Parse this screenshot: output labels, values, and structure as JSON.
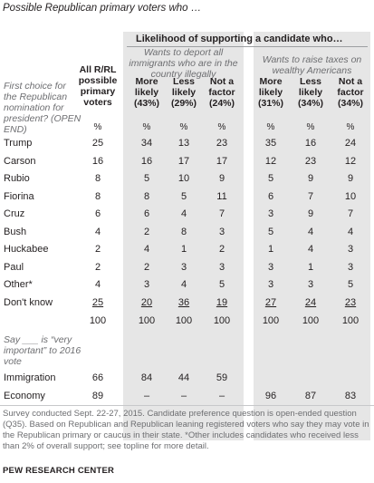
{
  "title": "Possible Republican primary voters who …",
  "group_title": "Likelihood of supporting a candidate who…",
  "subgroups": [
    {
      "label": "Wants to deport all immigrants who are in the country illegally"
    },
    {
      "label": "Wants to raise taxes on wealthy Americans"
    }
  ],
  "left_note": "First choice for the Republican nomination for president? (OPEN END)",
  "columns": [
    "All R/RL possible primary voters",
    "More likely (43%)",
    "Less likely (29%)",
    "Not a factor (24%)",
    "More likely (31%)",
    "Less likely (34%)",
    "Not a factor (34%)"
  ],
  "pct_signs": [
    "%",
    "%",
    "%",
    "%",
    "%",
    "%",
    "%"
  ],
  "rows": [
    {
      "label": "Trump",
      "values": [
        "25",
        "34",
        "13",
        "23",
        "35",
        "16",
        "24"
      ]
    },
    {
      "label": "Carson",
      "values": [
        "16",
        "16",
        "17",
        "17",
        "12",
        "23",
        "12"
      ]
    },
    {
      "label": "Rubio",
      "values": [
        "8",
        "5",
        "10",
        "9",
        "5",
        "9",
        "9"
      ]
    },
    {
      "label": "Fiorina",
      "values": [
        "8",
        "8",
        "5",
        "11",
        "6",
        "7",
        "10"
      ]
    },
    {
      "label": "Cruz",
      "values": [
        "6",
        "6",
        "4",
        "7",
        "3",
        "9",
        "7"
      ]
    },
    {
      "label": "Bush",
      "values": [
        "4",
        "2",
        "8",
        "3",
        "5",
        "4",
        "4"
      ]
    },
    {
      "label": "Huckabee",
      "values": [
        "2",
        "4",
        "1",
        "2",
        "1",
        "4",
        "3"
      ]
    },
    {
      "label": "Paul",
      "values": [
        "2",
        "2",
        "3",
        "3",
        "3",
        "1",
        "3"
      ]
    },
    {
      "label": "Other*",
      "values": [
        "4",
        "3",
        "4",
        "5",
        "3",
        "3",
        "5"
      ]
    },
    {
      "label": "Don't know",
      "values": [
        "25",
        "20",
        "36",
        "19",
        "27",
        "24",
        "23"
      ]
    }
  ],
  "totals": [
    "100",
    "100",
    "100",
    "100",
    "100",
    "100",
    "100"
  ],
  "say_note": "Say ___ is “very important” to 2016 vote",
  "importance_rows": [
    {
      "label": "Immigration",
      "values": [
        "66",
        "84",
        "44",
        "59",
        "",
        "",
        ""
      ]
    },
    {
      "label": "Economy",
      "values": [
        "89",
        "–",
        "–",
        "–",
        "96",
        "87",
        "83"
      ]
    }
  ],
  "footer": "Survey conducted Sept. 22-27, 2015. Candidate preference question is open-ended question (Q35). Based on Republican and Republican leaning registered voters who say they may vote in the Republican primary or caucus in their state. *Other includes candidates who received less than 2% of overall support; see topline for more detail.",
  "source": "PEW RESEARCH CENTER",
  "colors": {
    "band": "#e6e6e6",
    "note": "#6d6e71",
    "text": "#231f20"
  }
}
